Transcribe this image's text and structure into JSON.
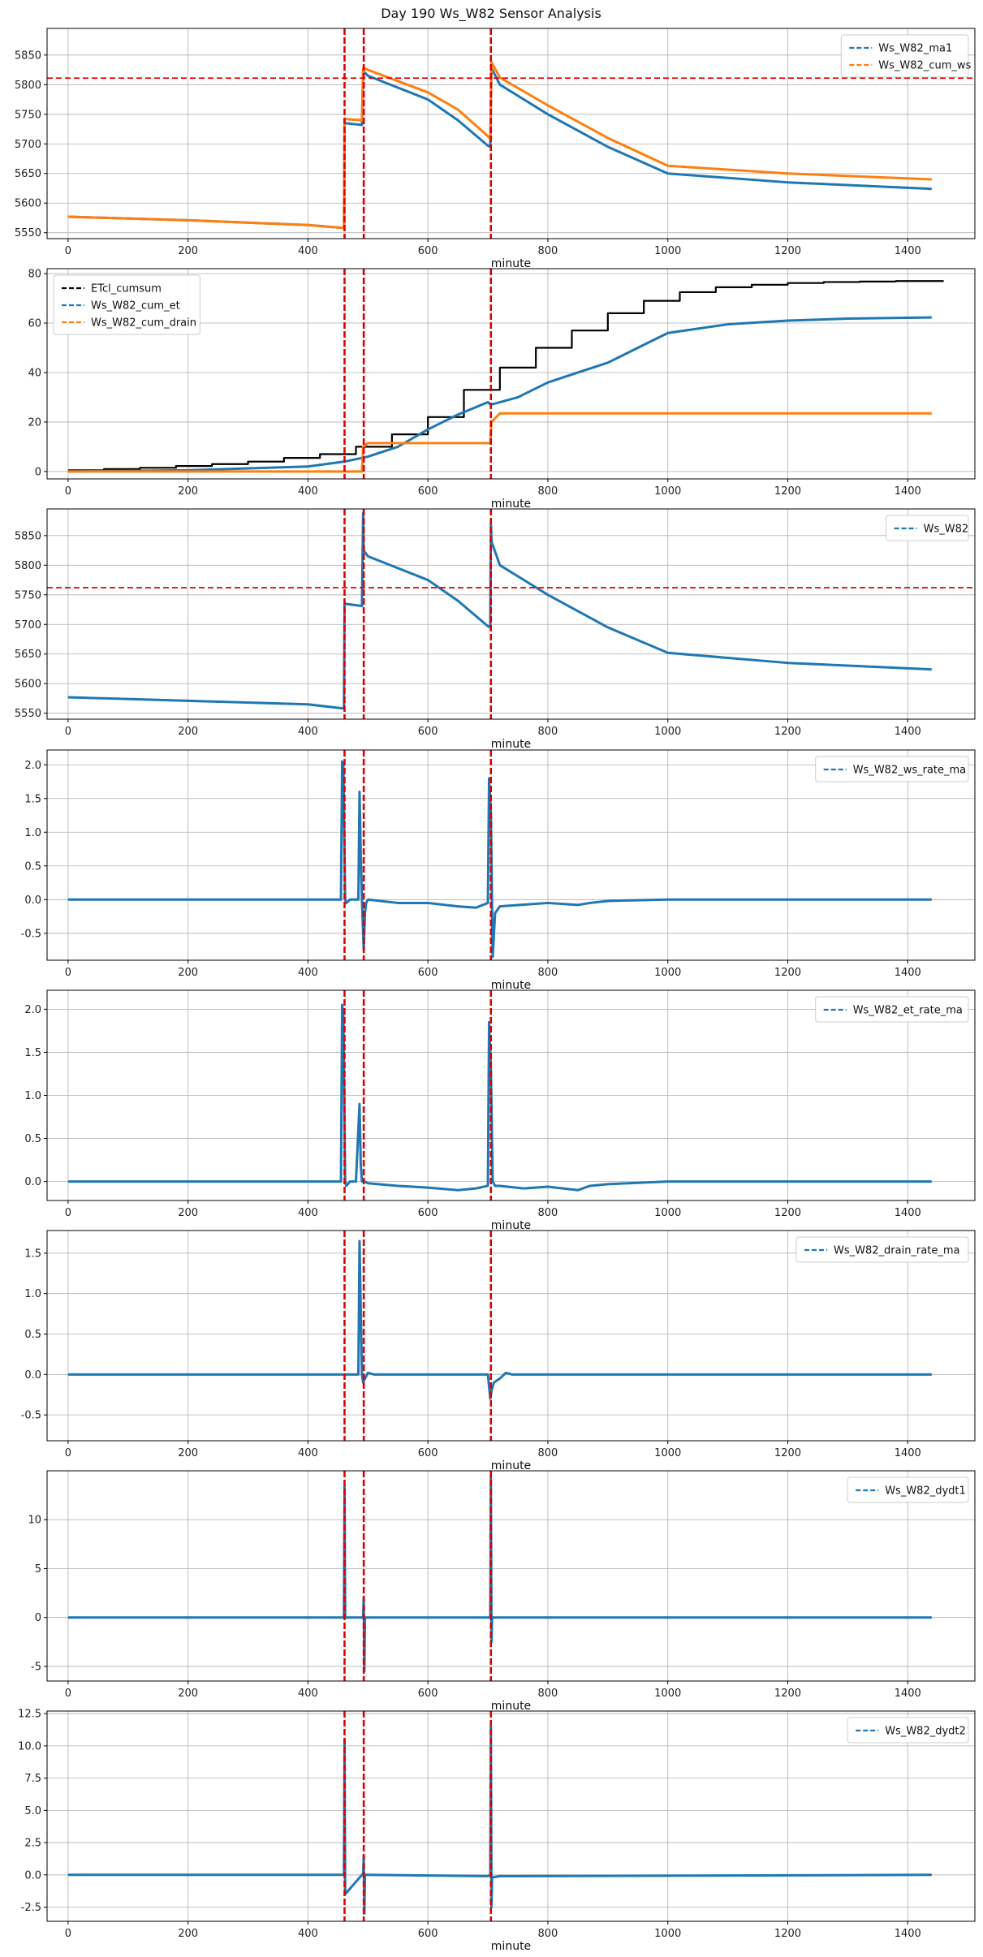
{
  "title": "Day 190 Ws_W82 Sensor Analysis",
  "colors": {
    "blue": "#1f77b4",
    "orange": "#ff7f0e",
    "black": "#000000",
    "red": "#e00000",
    "grid": "#b0b0b0"
  },
  "event_lines_minute": [
    461,
    493,
    705
  ],
  "chart_data": [
    {
      "type": "line",
      "name": "panel-cum-ws",
      "xlabel": "minute",
      "xlim": [
        -35,
        1512
      ],
      "ylim": [
        5540,
        5895
      ],
      "yticks": [
        5550,
        5600,
        5650,
        5700,
        5750,
        5800,
        5850
      ],
      "xticks": [
        0,
        200,
        400,
        600,
        800,
        1000,
        1200,
        1400
      ],
      "legend": {
        "position": "top-right",
        "entries": [
          "Ws_W82_ma1",
          "Ws_W82_cum_ws"
        ]
      },
      "hline": 5811,
      "series": [
        {
          "name": "Ws_W82_ma1",
          "color": "blue",
          "x": [
            0,
            200,
            400,
            460,
            461,
            490,
            492,
            500,
            600,
            650,
            700,
            704,
            706,
            720,
            800,
            900,
            1000,
            1200,
            1440
          ],
          "y": [
            5577,
            5571,
            5563,
            5558,
            5735,
            5732,
            5823,
            5815,
            5775,
            5740,
            5697,
            5695,
            5828,
            5800,
            5750,
            5695,
            5650,
            5635,
            5624
          ]
        },
        {
          "name": "Ws_W82_cum_ws",
          "color": "orange",
          "x": [
            0,
            200,
            400,
            460,
            461,
            490,
            492,
            500,
            600,
            650,
            700,
            704,
            706,
            720,
            800,
            900,
            1000,
            1200,
            1440
          ],
          "y": [
            5577,
            5571,
            5563,
            5558,
            5742,
            5740,
            5828,
            5825,
            5787,
            5758,
            5713,
            5708,
            5838,
            5812,
            5765,
            5710,
            5663,
            5650,
            5640
          ]
        }
      ]
    },
    {
      "type": "line",
      "name": "panel-cumsum",
      "xlabel": "minute",
      "xlim": [
        -35,
        1512
      ],
      "ylim": [
        -3,
        82
      ],
      "yticks": [
        0,
        20,
        40,
        60,
        80
      ],
      "xticks": [
        0,
        200,
        400,
        600,
        800,
        1000,
        1200,
        1400
      ],
      "legend": {
        "position": "top-left",
        "entries": [
          "ETcl_cumsum",
          "Ws_W82_cum_et",
          "Ws_W82_cum_drain"
        ]
      },
      "series": [
        {
          "name": "ETcl_cumsum",
          "color": "black",
          "step": true,
          "x": [
            0,
            60,
            120,
            180,
            240,
            300,
            360,
            420,
            480,
            540,
            600,
            660,
            720,
            780,
            840,
            900,
            960,
            1020,
            1080,
            1140,
            1200,
            1260,
            1320,
            1380,
            1440
          ],
          "y": [
            0.5,
            1,
            1.5,
            2.2,
            3,
            4,
            5.5,
            7,
            10,
            15,
            22,
            33,
            42,
            50,
            57,
            64,
            69,
            72.5,
            74.5,
            75.5,
            76.2,
            76.6,
            76.8,
            77,
            77
          ]
        },
        {
          "name": "Ws_W82_cum_et",
          "color": "blue",
          "x": [
            0,
            200,
            400,
            461,
            500,
            550,
            600,
            650,
            700,
            705,
            750,
            800,
            850,
            900,
            950,
            1000,
            1100,
            1200,
            1300,
            1440
          ],
          "y": [
            0,
            0.5,
            2,
            4,
            6,
            10,
            17,
            23,
            28,
            27,
            30,
            36,
            40,
            44,
            50,
            56,
            59.5,
            61,
            61.8,
            62.3
          ]
        },
        {
          "name": "Ws_W82_cum_drain",
          "color": "orange",
          "x": [
            0,
            490,
            492,
            500,
            704,
            706,
            720,
            1440
          ],
          "y": [
            0,
            0,
            10,
            11.5,
            11.5,
            20,
            23.5,
            23.5
          ]
        }
      ]
    },
    {
      "type": "line",
      "name": "panel-ws",
      "xlabel": "minute",
      "xlim": [
        -35,
        1512
      ],
      "ylim": [
        5540,
        5895
      ],
      "yticks": [
        5550,
        5600,
        5650,
        5700,
        5750,
        5800,
        5850
      ],
      "xticks": [
        0,
        200,
        400,
        600,
        800,
        1000,
        1200,
        1400
      ],
      "legend": {
        "position": "top-right",
        "entries": [
          "Ws_W82"
        ]
      },
      "hline": 5762,
      "series": [
        {
          "name": "Ws_W82",
          "color": "blue",
          "x": [
            0,
            200,
            400,
            460,
            461,
            490,
            492,
            493,
            495,
            500,
            600,
            650,
            700,
            704,
            705,
            706,
            720,
            800,
            900,
            1000,
            1200,
            1440
          ],
          "y": [
            5577,
            5571,
            5565,
            5558,
            5735,
            5731,
            5888,
            5825,
            5822,
            5815,
            5775,
            5740,
            5697,
            5695,
            5870,
            5840,
            5800,
            5750,
            5695,
            5652,
            5635,
            5624
          ]
        }
      ]
    },
    {
      "type": "line",
      "name": "panel-ws-rate",
      "xlabel": "minute",
      "xlim": [
        -35,
        1512
      ],
      "ylim": [
        -0.9,
        2.22
      ],
      "yticks": [
        -0.5,
        0.0,
        0.5,
        1.0,
        1.5,
        2.0
      ],
      "xticks": [
        0,
        200,
        400,
        600,
        800,
        1000,
        1200,
        1400
      ],
      "legend": {
        "position": "top-right",
        "entries": [
          "Ws_W82_ws_rate_ma"
        ]
      },
      "series": [
        {
          "name": "Ws_W82_ws_rate_ma",
          "color": "blue",
          "x": [
            0,
            450,
            455,
            457,
            459,
            462,
            464,
            470,
            480,
            484,
            486,
            488,
            490,
            493,
            495,
            497,
            500,
            550,
            600,
            650,
            680,
            700,
            702,
            705,
            708,
            712,
            720,
            800,
            850,
            870,
            900,
            1000,
            1440
          ],
          "y": [
            0,
            0,
            0,
            2.05,
            2.0,
            0,
            -0.05,
            0,
            0,
            0,
            1.6,
            0.7,
            0,
            -0.75,
            -0.2,
            -0.05,
            0,
            -0.05,
            -0.05,
            -0.1,
            -0.12,
            -0.05,
            1.8,
            1.3,
            -0.85,
            -0.2,
            -0.1,
            -0.05,
            -0.08,
            -0.05,
            -0.02,
            0,
            0
          ]
        }
      ]
    },
    {
      "type": "line",
      "name": "panel-et-rate",
      "xlabel": "minute",
      "xlim": [
        -35,
        1512
      ],
      "ylim": [
        -0.22,
        2.22
      ],
      "yticks": [
        0.0,
        0.5,
        1.0,
        1.5,
        2.0
      ],
      "xticks": [
        0,
        200,
        400,
        600,
        800,
        1000,
        1200,
        1400
      ],
      "legend": {
        "position": "top-right",
        "entries": [
          "Ws_W82_et_rate_ma"
        ]
      },
      "series": [
        {
          "name": "Ws_W82_et_rate_ma",
          "color": "blue",
          "x": [
            0,
            450,
            455,
            457,
            459,
            462,
            464,
            470,
            480,
            486,
            488,
            490,
            495,
            500,
            550,
            600,
            650,
            680,
            700,
            702,
            705,
            708,
            712,
            720,
            760,
            800,
            850,
            870,
            900,
            1000,
            1440
          ],
          "y": [
            0,
            0,
            0,
            2.05,
            1.95,
            0,
            -0.05,
            0,
            0,
            0.9,
            0.2,
            0,
            0,
            -0.02,
            -0.05,
            -0.07,
            -0.1,
            -0.08,
            -0.05,
            1.85,
            1.3,
            0,
            -0.05,
            -0.05,
            -0.08,
            -0.06,
            -0.1,
            -0.05,
            -0.03,
            0,
            0
          ]
        }
      ]
    },
    {
      "type": "line",
      "name": "panel-drain-rate",
      "xlabel": "minute",
      "xlim": [
        -35,
        1512
      ],
      "ylim": [
        -0.82,
        1.78
      ],
      "yticks": [
        -0.5,
        0.0,
        0.5,
        1.0,
        1.5
      ],
      "xticks": [
        0,
        200,
        400,
        600,
        800,
        1000,
        1200,
        1400
      ],
      "legend": {
        "position": "top-right",
        "entries": [
          "Ws_W82_drain_rate_ma"
        ]
      },
      "series": [
        {
          "name": "Ws_W82_drain_rate_ma",
          "color": "blue",
          "x": [
            0,
            484,
            486,
            488,
            490,
            492,
            495,
            500,
            510,
            520,
            700,
            704,
            706,
            710,
            720,
            730,
            740,
            1440
          ],
          "y": [
            0,
            0,
            1.65,
            0.8,
            0,
            -0.1,
            -0.05,
            0.02,
            0,
            0,
            0,
            -0.3,
            -0.2,
            -0.1,
            -0.05,
            0.02,
            0,
            0
          ]
        }
      ]
    },
    {
      "type": "line",
      "name": "panel-dydt1",
      "xlabel": "minute",
      "xlim": [
        -35,
        1512
      ],
      "ylim": [
        -6.5,
        15
      ],
      "yticks": [
        -5,
        0,
        5,
        10
      ],
      "xticks": [
        0,
        200,
        400,
        600,
        800,
        1000,
        1200,
        1400
      ],
      "legend": {
        "position": "top-right",
        "entries": [
          "Ws_W82_dydt1"
        ]
      },
      "series": [
        {
          "name": "Ws_W82_dydt1",
          "color": "blue",
          "x": [
            0,
            455,
            460,
            461,
            462,
            490,
            492,
            493,
            494,
            495,
            500,
            700,
            704,
            705,
            706,
            707,
            720,
            1440
          ],
          "y": [
            0,
            0,
            0,
            13.5,
            0,
            0,
            0,
            2,
            -5.5,
            0,
            0,
            0,
            0,
            14.5,
            -2.5,
            0,
            0,
            0
          ]
        }
      ]
    },
    {
      "type": "line",
      "name": "panel-dydt2",
      "xlabel": "minute",
      "xlim": [
        -35,
        1512
      ],
      "ylim": [
        -3.6,
        12.7
      ],
      "yticks": [
        -2.5,
        0.0,
        2.5,
        5.0,
        7.5,
        10.0,
        12.5
      ],
      "xticks": [
        0,
        200,
        400,
        600,
        800,
        1000,
        1200,
        1400
      ],
      "legend": {
        "position": "top-right",
        "entries": [
          "Ws_W82_dydt2"
        ]
      },
      "series": [
        {
          "name": "Ws_W82_dydt2",
          "color": "blue",
          "x": [
            0,
            455,
            460,
            461,
            462,
            490,
            492,
            493,
            494,
            495,
            500,
            700,
            704,
            705,
            706,
            707,
            720,
            1440
          ],
          "y": [
            0,
            0,
            0,
            10.5,
            -1.5,
            0,
            0,
            1.5,
            -3.0,
            0,
            0,
            -0.1,
            0,
            11.5,
            -2.5,
            -0.2,
            -0.1,
            0
          ]
        }
      ]
    }
  ]
}
